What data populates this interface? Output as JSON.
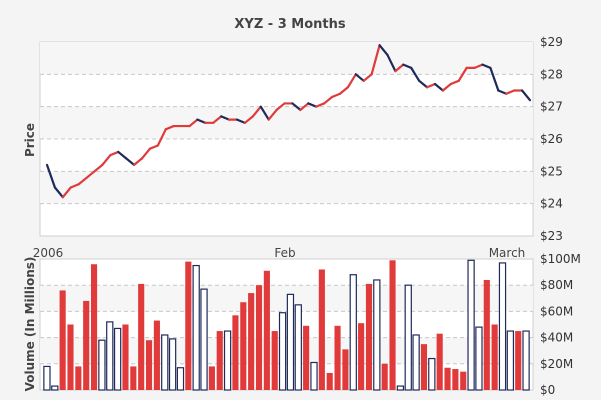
{
  "chart_data": [
    {
      "type": "line",
      "title": "XYZ - 3 Months",
      "xlabel": "",
      "ylabel": "Price",
      "ylim": [
        23,
        29
      ],
      "y_ticks": [
        "$23",
        "$24",
        "$25",
        "$26",
        "$27",
        "$28",
        "$29"
      ],
      "x_tick_labels": [
        "2006",
        "Feb",
        "March"
      ],
      "grid": true,
      "colors": {
        "up": "#e03a3a",
        "down": "#1f2a5a"
      },
      "series": [
        {
          "values": [
            25.2,
            24.5,
            24.2,
            24.5,
            24.6,
            24.8,
            25.0,
            25.2,
            25.5,
            25.6,
            25.4,
            25.2,
            25.4,
            25.7,
            25.8,
            26.3,
            26.4,
            26.4,
            26.4,
            26.6,
            26.5,
            26.5,
            26.7,
            26.6,
            26.6,
            26.5,
            26.7,
            27.0,
            26.6,
            26.9,
            27.1,
            27.1,
            26.9,
            27.1,
            27.0,
            27.1,
            27.3,
            27.4,
            27.6,
            28.0,
            27.8,
            28.0,
            28.9,
            28.6,
            28.1,
            28.3,
            28.2,
            27.8,
            27.6,
            27.7,
            27.5,
            27.7,
            27.8,
            28.2,
            28.2,
            28.3,
            28.2,
            27.5,
            27.4,
            27.5,
            27.5,
            27.2
          ]
        }
      ]
    },
    {
      "type": "bar",
      "title": "",
      "xlabel": "",
      "ylabel": "Volume (In Millions)",
      "ylim": [
        0,
        100
      ],
      "y_ticks": [
        "$0",
        "$20M",
        "$40M",
        "$60M",
        "$80M",
        "$100M"
      ],
      "grid": true,
      "legend": "none",
      "colors": {
        "up": "#e03a3a",
        "down": "#ffffff",
        "down_border": "#1f2a5a"
      },
      "values": [
        18,
        3,
        76,
        50,
        18,
        68,
        96,
        38,
        52,
        47,
        50,
        18,
        81,
        38,
        53,
        42,
        39,
        17,
        98,
        95,
        77,
        18,
        45,
        45,
        57,
        67,
        74,
        80,
        91,
        45,
        59,
        73,
        65,
        49,
        21,
        92,
        13,
        49,
        31,
        88,
        51,
        81,
        84,
        20,
        99,
        3,
        80,
        42,
        35,
        24,
        43,
        17,
        16,
        14,
        99,
        48,
        84,
        50,
        97,
        45,
        45,
        45
      ],
      "direction": [
        "down",
        "down",
        "up",
        "up",
        "up",
        "up",
        "up",
        "down",
        "down",
        "down",
        "up",
        "up",
        "up",
        "up",
        "up",
        "down",
        "down",
        "down",
        "up",
        "down",
        "down",
        "up",
        "up",
        "down",
        "up",
        "up",
        "up",
        "up",
        "up",
        "up",
        "down",
        "down",
        "down",
        "up",
        "down",
        "up",
        "up",
        "up",
        "up",
        "down",
        "up",
        "up",
        "down",
        "up",
        "up",
        "down",
        "down",
        "down",
        "up",
        "down",
        "up",
        "up",
        "up",
        "up",
        "down",
        "down",
        "up",
        "up",
        "down",
        "down",
        "up",
        "down"
      ]
    }
  ]
}
